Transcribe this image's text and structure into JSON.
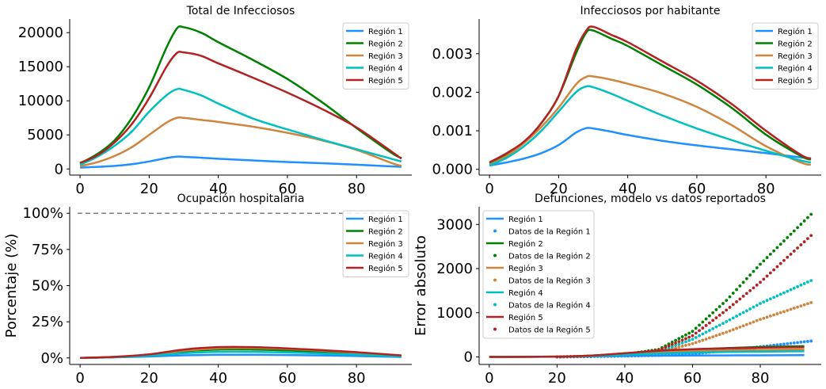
{
  "chart_data": [
    {
      "type": "line",
      "title": "Total de Infecciosos",
      "xlabel": "",
      "ylabel": "",
      "xlim": [
        -3,
        96
      ],
      "ylim": [
        -900,
        22000
      ],
      "x_ticks": [
        0,
        20,
        40,
        60,
        80
      ],
      "x_tick_labels": [
        "0",
        "20",
        "40",
        "60",
        "80"
      ],
      "y_ticks": [
        0,
        5000,
        10000,
        15000,
        20000
      ],
      "y_tick_labels": [
        "0",
        "5000",
        "10000",
        "15000",
        "20000"
      ],
      "grid": false,
      "legend": "top-right",
      "series": [
        {
          "name": "Región 1",
          "color": "#1e90ff",
          "x": [
            0,
            5,
            10,
            15,
            20,
            25,
            28,
            30,
            35,
            40,
            50,
            60,
            70,
            80,
            90,
            93
          ],
          "y": [
            200,
            300,
            450,
            700,
            1100,
            1600,
            1800,
            1780,
            1650,
            1500,
            1250,
            1020,
            850,
            620,
            380,
            320
          ]
        },
        {
          "name": "Región 2",
          "color": "#008000",
          "x": [
            0,
            5,
            10,
            15,
            20,
            25,
            28,
            30,
            35,
            40,
            50,
            60,
            70,
            80,
            90,
            93
          ],
          "y": [
            800,
            2200,
            4200,
            7500,
            12000,
            17800,
            20600,
            20800,
            20000,
            18600,
            16000,
            13200,
            9800,
            6000,
            2400,
            1600
          ]
        },
        {
          "name": "Región 3",
          "color": "#cd853f",
          "x": [
            0,
            5,
            10,
            15,
            20,
            25,
            28,
            30,
            35,
            40,
            50,
            60,
            70,
            80,
            90,
            93
          ],
          "y": [
            400,
            1000,
            1900,
            3200,
            5000,
            6800,
            7500,
            7500,
            7200,
            6900,
            6200,
            5300,
            4200,
            2800,
            900,
            450
          ]
        },
        {
          "name": "Región 4",
          "color": "#00bfbf",
          "x": [
            0,
            5,
            10,
            15,
            20,
            25,
            28,
            30,
            35,
            40,
            50,
            60,
            70,
            80,
            90,
            93
          ],
          "y": [
            600,
            1800,
            3400,
            5500,
            8400,
            10800,
            11700,
            11600,
            10800,
            9600,
            7400,
            5800,
            4300,
            2900,
            1500,
            1100
          ]
        },
        {
          "name": "Región 5",
          "color": "#b22222",
          "x": [
            0,
            5,
            10,
            15,
            20,
            25,
            28,
            30,
            35,
            40,
            50,
            60,
            70,
            80,
            90,
            93
          ],
          "y": [
            900,
            2000,
            3900,
            6600,
            10400,
            15000,
            17000,
            17100,
            16600,
            15500,
            13400,
            11200,
            8800,
            6100,
            2600,
            1500
          ]
        }
      ]
    },
    {
      "type": "line",
      "title": "Infecciosos por habitante",
      "xlabel": "",
      "ylabel": "",
      "xlim": [
        -3,
        96
      ],
      "ylim": [
        -0.00015,
        0.0039
      ],
      "x_ticks": [
        0,
        20,
        40,
        60,
        80
      ],
      "x_tick_labels": [
        "0",
        "20",
        "40",
        "60",
        "80"
      ],
      "y_ticks": [
        0,
        0.001,
        0.002,
        0.003
      ],
      "y_tick_labels": [
        "0.000",
        "0.001",
        "0.002",
        "0.003"
      ],
      "grid": false,
      "legend": "top-right",
      "series": [
        {
          "name": "Región 1",
          "color": "#1e90ff",
          "x": [
            0,
            5,
            10,
            15,
            20,
            25,
            28,
            30,
            35,
            40,
            50,
            60,
            70,
            80,
            90,
            93
          ],
          "y": [
            0.0001,
            0.00018,
            0.00028,
            0.00042,
            0.00063,
            0.00095,
            0.00107,
            0.00106,
            0.00098,
            0.00089,
            0.00074,
            0.00062,
            0.00052,
            0.00042,
            0.00031,
            0.00028
          ]
        },
        {
          "name": "Región 2",
          "color": "#008000",
          "x": [
            0,
            5,
            10,
            15,
            20,
            25,
            28,
            30,
            35,
            40,
            50,
            60,
            70,
            80,
            90,
            93
          ],
          "y": [
            0.00015,
            0.0004,
            0.0007,
            0.0012,
            0.0019,
            0.003,
            0.00355,
            0.0036,
            0.0034,
            0.0032,
            0.0027,
            0.0022,
            0.0016,
            0.0009,
            0.00035,
            0.00025
          ]
        },
        {
          "name": "Región 3",
          "color": "#cd853f",
          "x": [
            0,
            5,
            10,
            15,
            20,
            25,
            28,
            30,
            35,
            40,
            50,
            60,
            70,
            80,
            90,
            93
          ],
          "y": [
            0.00012,
            0.00035,
            0.00068,
            0.0011,
            0.0016,
            0.0022,
            0.0024,
            0.00241,
            0.00233,
            0.00222,
            0.00197,
            0.00162,
            0.00115,
            0.0006,
            0.00018,
            0.00012
          ]
        },
        {
          "name": "Región 4",
          "color": "#00bfbf",
          "x": [
            0,
            5,
            10,
            15,
            20,
            25,
            28,
            30,
            35,
            40,
            50,
            60,
            70,
            80,
            90,
            93
          ],
          "y": [
            0.0001,
            0.0003,
            0.0006,
            0.001,
            0.0015,
            0.002,
            0.00215,
            0.00213,
            0.00197,
            0.00178,
            0.0014,
            0.00106,
            0.00076,
            0.00048,
            0.00023,
            0.00018
          ]
        },
        {
          "name": "Región 5",
          "color": "#b22222",
          "x": [
            0,
            5,
            10,
            15,
            20,
            25,
            28,
            30,
            35,
            40,
            50,
            60,
            70,
            80,
            90,
            93
          ],
          "y": [
            0.00018,
            0.00042,
            0.00072,
            0.0012,
            0.0019,
            0.0031,
            0.0036,
            0.0037,
            0.0035,
            0.0033,
            0.0028,
            0.0023,
            0.0017,
            0.001,
            0.00038,
            0.00028
          ]
        }
      ]
    },
    {
      "type": "line",
      "title": "Ocupación hospitalaria",
      "xlabel": "",
      "ylabel": "Porcentaje (%)",
      "xlim": [
        -3,
        96
      ],
      "ylim": [
        -0.045,
        1.045
      ],
      "x_ticks": [
        0,
        20,
        40,
        60,
        80
      ],
      "x_tick_labels": [
        "0",
        "20",
        "40",
        "60",
        "80"
      ],
      "y_ticks": [
        0,
        0.25,
        0.5,
        0.75,
        1.0
      ],
      "y_tick_labels": [
        "0%",
        "25%",
        "50%",
        "75%",
        "100%"
      ],
      "grid": false,
      "legend": "top-right",
      "reference_line": {
        "y": 1.0,
        "style": "dashed",
        "color": "#808080"
      },
      "series": [
        {
          "name": "Región 1",
          "color": "#1e90ff",
          "x": [
            0,
            10,
            20,
            30,
            40,
            50,
            60,
            70,
            80,
            93
          ],
          "y": [
            0,
            0.004,
            0.01,
            0.018,
            0.022,
            0.022,
            0.02,
            0.017,
            0.013,
            0.007
          ]
        },
        {
          "name": "Región 2",
          "color": "#008000",
          "x": [
            0,
            10,
            20,
            30,
            40,
            50,
            60,
            70,
            80,
            93
          ],
          "y": [
            0,
            0.006,
            0.02,
            0.045,
            0.058,
            0.058,
            0.052,
            0.042,
            0.03,
            0.012
          ]
        },
        {
          "name": "Región 3",
          "color": "#cd853f",
          "x": [
            0,
            10,
            20,
            30,
            40,
            50,
            60,
            70,
            80,
            93
          ],
          "y": [
            0,
            0.007,
            0.022,
            0.05,
            0.066,
            0.068,
            0.062,
            0.05,
            0.036,
            0.015
          ]
        },
        {
          "name": "Región 4",
          "color": "#00bfbf",
          "x": [
            0,
            10,
            20,
            30,
            40,
            50,
            60,
            70,
            80,
            93
          ],
          "y": [
            0,
            0.005,
            0.016,
            0.033,
            0.042,
            0.042,
            0.038,
            0.031,
            0.023,
            0.01
          ]
        },
        {
          "name": "Región 5",
          "color": "#b22222",
          "x": [
            0,
            10,
            20,
            30,
            40,
            50,
            60,
            70,
            80,
            93
          ],
          "y": [
            0,
            0.008,
            0.025,
            0.058,
            0.075,
            0.075,
            0.066,
            0.054,
            0.04,
            0.017
          ]
        }
      ]
    },
    {
      "type": "line",
      "title": "Defunciones, modelo vs datos reportados",
      "xlabel": "",
      "ylabel": "Error absoluto",
      "xlim": [
        -3,
        98
      ],
      "ylim": [
        -170,
        3400
      ],
      "x_ticks": [
        0,
        20,
        40,
        60,
        80
      ],
      "x_tick_labels": [
        "0",
        "20",
        "40",
        "60",
        "80"
      ],
      "y_ticks": [
        0,
        1000,
        2000,
        3000
      ],
      "y_tick_labels": [
        "0",
        "1000",
        "2000",
        "3000"
      ],
      "grid": false,
      "legend": "top-left",
      "series": [
        {
          "name": "Región 1",
          "color": "#1e90ff",
          "x": [
            0,
            20,
            30,
            40,
            50,
            60,
            70,
            80,
            93
          ],
          "y": [
            0,
            5,
            12,
            22,
            28,
            32,
            35,
            37,
            40
          ]
        },
        {
          "name": "Región 2",
          "color": "#008000",
          "x": [
            0,
            20,
            30,
            40,
            50,
            60,
            70,
            80,
            93
          ],
          "y": [
            0,
            8,
            30,
            80,
            130,
            170,
            200,
            225,
            245
          ]
        },
        {
          "name": "Región 3",
          "color": "#cd853f",
          "x": [
            0,
            20,
            30,
            40,
            50,
            60,
            70,
            80,
            93
          ],
          "y": [
            0,
            7,
            25,
            70,
            110,
            135,
            150,
            160,
            168
          ]
        },
        {
          "name": "Región 4",
          "color": "#00bfbf",
          "x": [
            0,
            20,
            30,
            40,
            50,
            60,
            70,
            80,
            93
          ],
          "y": [
            0,
            5,
            18,
            50,
            80,
            100,
            112,
            120,
            128
          ]
        },
        {
          "name": "Región 5",
          "color": "#b22222",
          "x": [
            0,
            20,
            30,
            40,
            50,
            60,
            70,
            80,
            93
          ],
          "y": [
            0,
            8,
            30,
            85,
            140,
            175,
            195,
            210,
            220
          ]
        }
      ],
      "scatter_series": [
        {
          "name": "Datos de la Región 1",
          "color": "#1e90ff",
          "x": [
            20,
            30,
            40,
            50,
            60,
            70,
            80,
            95
          ],
          "y": [
            0,
            8,
            20,
            35,
            70,
            140,
            230,
            360
          ]
        },
        {
          "name": "Datos de la Región 2",
          "color": "#008000",
          "x": [
            20,
            30,
            40,
            50,
            60,
            70,
            80,
            95
          ],
          "y": [
            0,
            20,
            60,
            170,
            580,
            1280,
            2100,
            3230
          ]
        },
        {
          "name": "Datos de la Región 3",
          "color": "#cd853f",
          "x": [
            20,
            30,
            40,
            50,
            60,
            70,
            80,
            95
          ],
          "y": [
            0,
            10,
            40,
            110,
            300,
            560,
            850,
            1230
          ]
        },
        {
          "name": "Datos de la Región 4",
          "color": "#00bfbf",
          "x": [
            20,
            30,
            40,
            50,
            60,
            70,
            80,
            95
          ],
          "y": [
            0,
            10,
            40,
            120,
            400,
            800,
            1210,
            1730
          ]
        },
        {
          "name": "Datos de la Región 5",
          "color": "#b22222",
          "x": [
            20,
            30,
            40,
            50,
            60,
            70,
            80,
            95
          ],
          "y": [
            0,
            15,
            50,
            150,
            480,
            1060,
            1690,
            2750
          ]
        }
      ]
    }
  ]
}
